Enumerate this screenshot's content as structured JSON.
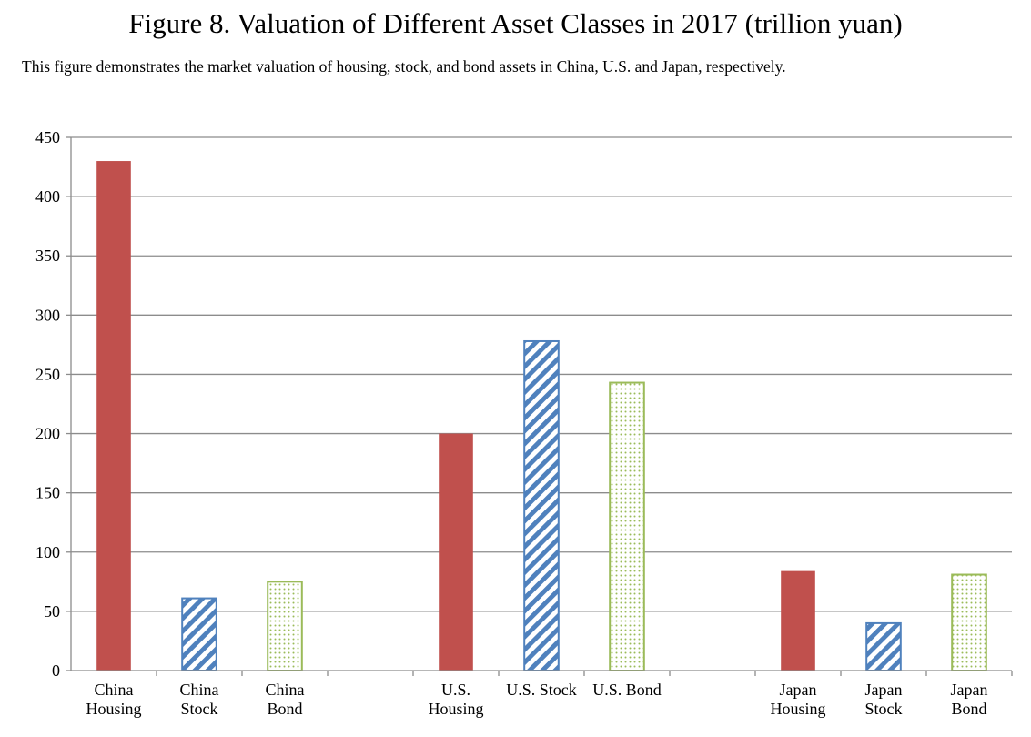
{
  "title": "Figure 8. Valuation of Different Asset Classes in 2017 (trillion yuan)",
  "subtitle": "This figure demonstrates the market valuation of housing, stock, and bond assets in China, U.S. and Japan, respectively.",
  "colors": {
    "housing": "#c0504d",
    "stock": "#4f81bd",
    "bond": "#9bbb59",
    "grid": "#8c8c8c"
  },
  "chart_data": {
    "type": "bar",
    "title": "Figure 8. Valuation of Different Asset Classes in 2017 (trillion yuan)",
    "xlabel": "",
    "ylabel": "",
    "ylim": [
      0,
      450
    ],
    "yticks": [
      "0",
      "50",
      "100",
      "150",
      "200",
      "250",
      "300",
      "350",
      "400",
      "450"
    ],
    "grid": true,
    "legend": "none",
    "categories": [
      {
        "lines": [
          "China",
          "Housing"
        ],
        "value": 430,
        "kind": "housing"
      },
      {
        "lines": [
          "China",
          "Stock"
        ],
        "value": 61,
        "kind": "stock"
      },
      {
        "lines": [
          "China",
          "Bond"
        ],
        "value": 75,
        "kind": "bond"
      },
      {
        "lines": [
          ""
        ],
        "value": null,
        "kind": "gap"
      },
      {
        "lines": [
          "U.S.",
          "Housing"
        ],
        "value": 200,
        "kind": "housing"
      },
      {
        "lines": [
          "U.S. Stock"
        ],
        "value": 278,
        "kind": "stock"
      },
      {
        "lines": [
          "U.S. Bond"
        ],
        "value": 243,
        "kind": "bond"
      },
      {
        "lines": [
          ""
        ],
        "value": null,
        "kind": "gap"
      },
      {
        "lines": [
          "Japan",
          "Housing"
        ],
        "value": 84,
        "kind": "housing"
      },
      {
        "lines": [
          "Japan",
          "Stock"
        ],
        "value": 40,
        "kind": "stock"
      },
      {
        "lines": [
          "Japan",
          "Bond"
        ],
        "value": 81,
        "kind": "bond"
      }
    ]
  }
}
